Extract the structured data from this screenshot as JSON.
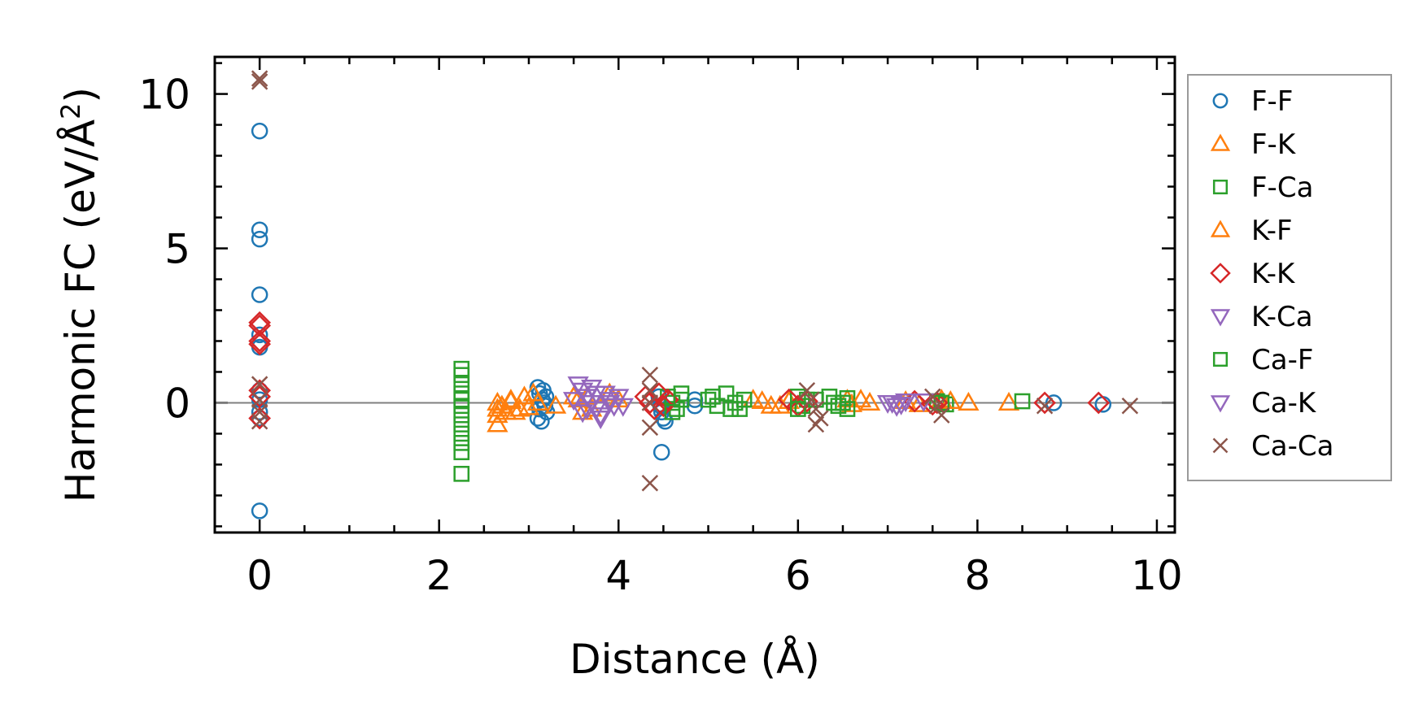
{
  "chart_data": {
    "type": "scatter",
    "title": "",
    "xlabel": "Distance (Å)",
    "ylabel_main": "Harmonic FC (eV/Å",
    "ylabel_sup": "2",
    "ylabel_close": ")",
    "xlim": [
      -0.5,
      10.2
    ],
    "ylim": [
      -4.2,
      11.2
    ],
    "xticks": [
      0,
      2,
      4,
      6,
      8,
      10
    ],
    "xtick_labels": [
      "0",
      "2",
      "4",
      "6",
      "8",
      "10"
    ],
    "yticks": [
      0,
      5,
      10
    ],
    "ytick_labels": [
      "0",
      "5",
      "10"
    ],
    "zero_line": 0,
    "legend_position": "right, outside",
    "series": [
      {
        "name": "F-F",
        "marker": "circle",
        "color": "#1f77b4",
        "x": [
          0,
          0,
          0,
          0,
          0,
          0,
          0,
          0,
          0,
          0,
          0,
          3.1,
          3.12,
          3.15,
          3.18,
          3.2,
          3.1,
          3.14,
          3.16,
          3.19,
          3.12,
          3.17,
          4.45,
          4.47,
          4.48,
          4.5,
          4.52,
          4.48,
          4.85,
          4.85,
          8.85,
          9.4
        ],
        "y": [
          8.8,
          5.6,
          5.3,
          3.5,
          1.8,
          0.4,
          0.1,
          -0.3,
          -3.5,
          2.2,
          -0.5,
          0.5,
          0.3,
          0.1,
          -0.1,
          -0.3,
          -0.5,
          -0.6,
          0.4,
          0.2,
          -0.2,
          0.0,
          0.2,
          -0.1,
          -0.3,
          -0.5,
          -0.6,
          -1.6,
          0.1,
          -0.1,
          0.0,
          -0.05
        ]
      },
      {
        "name": "F-K",
        "marker": "triangle-up",
        "color": "#ff7f0e",
        "x": [
          2.65,
          2.65,
          2.65,
          2.65,
          2.7,
          2.75,
          2.8,
          2.9,
          2.95,
          3.05,
          3.3,
          3.55,
          3.6,
          3.65,
          3.9,
          5.5,
          5.7,
          5.9,
          6.55,
          6.6,
          7.2,
          7.6,
          7.9,
          8.35
        ],
        "y": [
          0.0,
          -0.2,
          -0.4,
          -0.7,
          -0.1,
          -0.3,
          0.1,
          -0.2,
          0.2,
          0.3,
          -0.1,
          0.1,
          -0.3,
          0.2,
          0.3,
          0.1,
          -0.1,
          0.05,
          0.1,
          -0.05,
          0.05,
          0.1,
          0.0,
          0.0
        ]
      },
      {
        "name": "F-Ca",
        "marker": "square",
        "color": "#2ca02c",
        "x": [
          2.25,
          2.25,
          2.25,
          2.25,
          2.25,
          2.25,
          2.25,
          2.25,
          2.25,
          2.25,
          2.25,
          2.25,
          4.55,
          4.6,
          4.65,
          4.7,
          5.0,
          5.1,
          5.2,
          5.3,
          5.35,
          6.0,
          6.05,
          6.1,
          6.35,
          6.45,
          6.5,
          6.55,
          7.55,
          7.65,
          8.5
        ],
        "y": [
          1.1,
          0.9,
          0.6,
          0.3,
          0.1,
          -0.1,
          -0.4,
          -0.7,
          -1.0,
          -1.3,
          -1.6,
          -2.3,
          0.2,
          0.0,
          -0.2,
          0.3,
          0.1,
          -0.1,
          0.3,
          0.0,
          -0.2,
          0.2,
          -0.1,
          0.1,
          0.2,
          -0.1,
          0.0,
          0.15,
          0.05,
          -0.05,
          0.05
        ]
      },
      {
        "name": "K-F",
        "marker": "triangle-up",
        "color": "#ff7f0e",
        "x": [
          2.7,
          2.8,
          2.85,
          3.0,
          3.1,
          3.5,
          3.7,
          4.0,
          5.6,
          5.8,
          6.7,
          6.8,
          7.35,
          7.7
        ],
        "y": [
          -0.1,
          0.05,
          -0.3,
          -0.15,
          0.0,
          0.2,
          -0.2,
          0.1,
          0.05,
          -0.1,
          0.1,
          0.0,
          -0.05,
          0.05
        ]
      },
      {
        "name": "K-K",
        "marker": "diamond",
        "color": "#d62728",
        "x": [
          0,
          0,
          0,
          0,
          0,
          0,
          0,
          4.3,
          4.35,
          4.4,
          4.45,
          4.5,
          4.55,
          5.9,
          6.0,
          6.1,
          7.3,
          7.5,
          7.55,
          8.75,
          9.35
        ],
        "y": [
          2.6,
          2.5,
          2.0,
          1.9,
          0.4,
          0.2,
          -0.5,
          0.2,
          0.0,
          -0.2,
          0.3,
          -0.1,
          0.1,
          0.1,
          -0.1,
          0.05,
          0.05,
          -0.05,
          0.0,
          0.0,
          0.0
        ]
      },
      {
        "name": "K-Ca",
        "marker": "triangle-down",
        "color": "#9467bd",
        "x": [
          3.55,
          3.6,
          3.65,
          3.7,
          3.75,
          3.8,
          3.85,
          3.9,
          3.95,
          4.0,
          3.6,
          3.7,
          3.8,
          7.0,
          7.1,
          7.2
        ],
        "y": [
          0.6,
          0.4,
          0.2,
          0.0,
          -0.2,
          -0.4,
          0.3,
          0.1,
          -0.1,
          0.2,
          -0.3,
          0.5,
          -0.5,
          0.0,
          -0.1,
          0.05
        ]
      },
      {
        "name": "Ca-F",
        "marker": "square",
        "color": "#2ca02c",
        "x": [
          4.6,
          4.7,
          5.05,
          5.25,
          5.4,
          6.0,
          6.2,
          6.4,
          6.55,
          7.6
        ],
        "y": [
          -0.3,
          0.1,
          0.2,
          -0.2,
          0.1,
          -0.2,
          0.1,
          0.0,
          -0.2,
          0.0
        ]
      },
      {
        "name": "Ca-K",
        "marker": "triangle-down",
        "color": "#9467bd",
        "x": [
          3.5,
          3.65,
          3.75,
          3.9,
          4.05,
          7.05,
          7.15,
          7.4
        ],
        "y": [
          0.1,
          -0.2,
          0.3,
          0.0,
          -0.1,
          0.0,
          -0.05,
          0.05
        ]
      },
      {
        "name": "Ca-Ca",
        "marker": "x",
        "color": "#8c564b",
        "x": [
          0,
          0,
          0,
          0,
          0,
          0,
          4.35,
          4.35,
          4.35,
          4.35,
          4.35,
          6.1,
          6.15,
          6.2,
          6.25,
          6.2,
          7.5,
          7.55,
          7.6,
          8.75,
          9.7
        ],
        "y": [
          10.5,
          10.4,
          0.6,
          0.1,
          -0.3,
          -0.6,
          0.9,
          0.4,
          0.0,
          -0.8,
          -2.6,
          0.4,
          0.1,
          -0.2,
          -0.5,
          -0.7,
          0.2,
          -0.1,
          -0.4,
          -0.1,
          -0.1
        ]
      }
    ]
  }
}
